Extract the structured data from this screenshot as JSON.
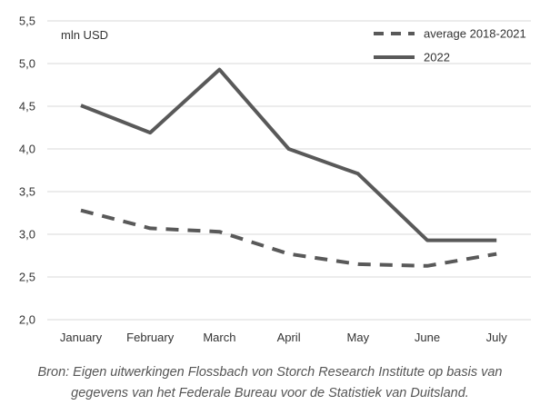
{
  "colors": {
    "series_line": "#595959",
    "grid": "#d9d9d9",
    "text": "#333333",
    "caption": "#555555"
  },
  "chart_data": {
    "type": "line",
    "unit_label": "mln USD",
    "categories": [
      "January",
      "February",
      "March",
      "April",
      "May",
      "June",
      "July"
    ],
    "y_ticks": [
      "2,0",
      "2,5",
      "3,0",
      "3,5",
      "4,0",
      "4,5",
      "5,0",
      "5,5"
    ],
    "ylim": [
      2.0,
      5.5
    ],
    "grid": "horizontal",
    "legend_position": "top-right",
    "series": [
      {
        "name": "average 2018-2021",
        "style": "dashed",
        "values": [
          3.28,
          3.07,
          3.03,
          2.77,
          2.65,
          2.63,
          2.77
        ]
      },
      {
        "name": "2022",
        "style": "solid",
        "values": [
          4.51,
          4.19,
          4.93,
          4.0,
          3.71,
          2.93,
          2.93
        ]
      }
    ]
  },
  "caption": {
    "line1": "Bron: Eigen uitwerkingen Flossbach von Storch Research Institute op basis van",
    "line2": "gegevens van het Federale Bureau voor de Statistiek van Duitsland."
  }
}
